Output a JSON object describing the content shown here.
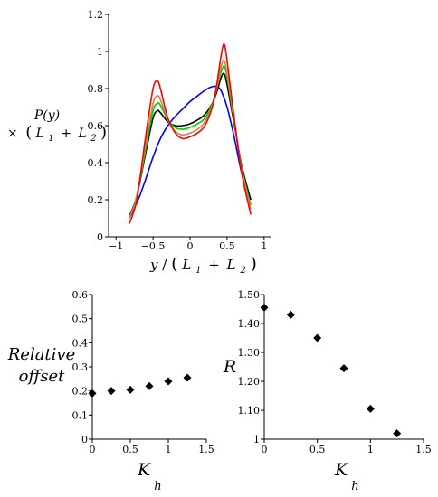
{
  "chart_data": [
    {
      "type": "line",
      "xlabel": {
        "text": "y",
        "sep": "/",
        "open": "(",
        "l1": "L",
        "s1": "1",
        "plus": "+",
        "l2": "L",
        "s2": "2",
        "close": ")"
      },
      "ylabel": {
        "line1": "P(y)",
        "times": "×",
        "open": "(",
        "l1": "L",
        "s1": "1",
        "plus": "+",
        "l2": "L",
        "s2": "2",
        "close": ")"
      },
      "xlim": [
        -1.1,
        1.1
      ],
      "ylim": [
        0,
        1.2
      ],
      "xticks": [
        -1,
        -0.5,
        0,
        0.5,
        1
      ],
      "xticklabels": [
        "−1",
        "−0.5",
        "0",
        "0.5",
        "1"
      ],
      "yticks": [
        0,
        0.2,
        0.4,
        0.6,
        0.8,
        1,
        1.2
      ],
      "yticklabels": [
        "0",
        "0.2",
        "0.4",
        "0.6",
        "0.8",
        "1",
        "1.2"
      ],
      "series": [
        {
          "color": "#0000ff",
          "x": [
            -0.82,
            -0.7,
            -0.6,
            -0.5,
            -0.4,
            -0.3,
            -0.2,
            -0.1,
            0,
            0.1,
            0.2,
            0.3,
            0.4,
            0.5,
            0.6,
            0.7,
            0.82
          ],
          "y": [
            0.1,
            0.2,
            0.31,
            0.43,
            0.53,
            0.6,
            0.65,
            0.69,
            0.73,
            0.76,
            0.79,
            0.81,
            0.8,
            0.7,
            0.53,
            0.34,
            0.2
          ]
        },
        {
          "color": "#000000",
          "x": [
            -0.82,
            -0.72,
            -0.6,
            -0.5,
            -0.44,
            -0.4,
            -0.3,
            -0.2,
            -0.1,
            0,
            0.1,
            0.2,
            0.3,
            0.36,
            0.42,
            0.46,
            0.5,
            0.6,
            0.7,
            0.82
          ],
          "y": [
            0.11,
            0.22,
            0.45,
            0.64,
            0.68,
            0.67,
            0.62,
            0.6,
            0.6,
            0.61,
            0.63,
            0.66,
            0.72,
            0.78,
            0.86,
            0.88,
            0.82,
            0.6,
            0.38,
            0.2
          ]
        },
        {
          "color": "#00cc00",
          "x": [
            -0.82,
            -0.72,
            -0.6,
            -0.5,
            -0.44,
            -0.4,
            -0.3,
            -0.2,
            -0.1,
            0,
            0.1,
            0.2,
            0.3,
            0.36,
            0.42,
            0.46,
            0.5,
            0.6,
            0.7,
            0.82
          ],
          "y": [
            0.1,
            0.22,
            0.47,
            0.68,
            0.72,
            0.71,
            0.63,
            0.59,
            0.58,
            0.59,
            0.61,
            0.64,
            0.72,
            0.8,
            0.89,
            0.92,
            0.86,
            0.61,
            0.37,
            0.17
          ]
        },
        {
          "color": "#cc8844",
          "x": [
            -0.82,
            -0.72,
            -0.6,
            -0.5,
            -0.44,
            -0.4,
            -0.3,
            -0.2,
            -0.1,
            0,
            0.1,
            0.2,
            0.3,
            0.36,
            0.42,
            0.46,
            0.5,
            0.6,
            0.7,
            0.82
          ],
          "y": [
            0.1,
            0.22,
            0.5,
            0.72,
            0.76,
            0.74,
            0.63,
            0.57,
            0.55,
            0.56,
            0.58,
            0.62,
            0.71,
            0.8,
            0.92,
            0.95,
            0.88,
            0.62,
            0.36,
            0.15
          ]
        },
        {
          "color": "#ff0000",
          "x": [
            -0.82,
            -0.72,
            -0.6,
            -0.5,
            -0.44,
            -0.4,
            -0.3,
            -0.2,
            -0.1,
            0,
            0.1,
            0.2,
            0.3,
            0.36,
            0.42,
            0.46,
            0.5,
            0.6,
            0.7,
            0.82
          ],
          "y": [
            0.07,
            0.2,
            0.54,
            0.8,
            0.84,
            0.8,
            0.64,
            0.56,
            0.53,
            0.54,
            0.56,
            0.6,
            0.7,
            0.82,
            0.98,
            1.04,
            0.95,
            0.63,
            0.34,
            0.12
          ]
        }
      ]
    },
    {
      "type": "scatter",
      "ylabel_lines": [
        "Relative",
        "offset"
      ],
      "xlabel": {
        "main": "K",
        "sub": "h"
      },
      "xlim": [
        0,
        1.5
      ],
      "ylim": [
        0,
        0.6
      ],
      "xticks": [
        0,
        0.5,
        1,
        1.5
      ],
      "xticklabels": [
        "0",
        "0.5",
        "1",
        "1.5"
      ],
      "yticks": [
        0,
        0.1,
        0.2,
        0.3,
        0.4,
        0.5,
        0.6
      ],
      "yticklabels": [
        "0",
        "0.1",
        "0.2",
        "0.3",
        "0.4",
        "0.5",
        "0.6"
      ],
      "x": [
        0,
        0.25,
        0.5,
        0.75,
        1,
        1.25
      ],
      "y": [
        0.19,
        0.2,
        0.205,
        0.22,
        0.24,
        0.255
      ]
    },
    {
      "type": "scatter",
      "ylabel": "R",
      "xlabel": {
        "main": "K",
        "sub": "h"
      },
      "xlim": [
        0,
        1.5
      ],
      "ylim": [
        1,
        1.5
      ],
      "xticks": [
        0,
        0.5,
        1,
        1.5
      ],
      "xticklabels": [
        "0",
        "0.5",
        "1",
        "1.5"
      ],
      "yticks": [
        1,
        1.1,
        1.2,
        1.3,
        1.4,
        1.5
      ],
      "yticklabels": [
        "1",
        "1.10",
        "1.20",
        "1.30",
        "1.40",
        "1.50"
      ],
      "x": [
        0,
        0.25,
        0.5,
        0.75,
        1,
        1.25
      ],
      "y": [
        1.455,
        1.43,
        1.35,
        1.245,
        1.105,
        1.02
      ]
    }
  ]
}
